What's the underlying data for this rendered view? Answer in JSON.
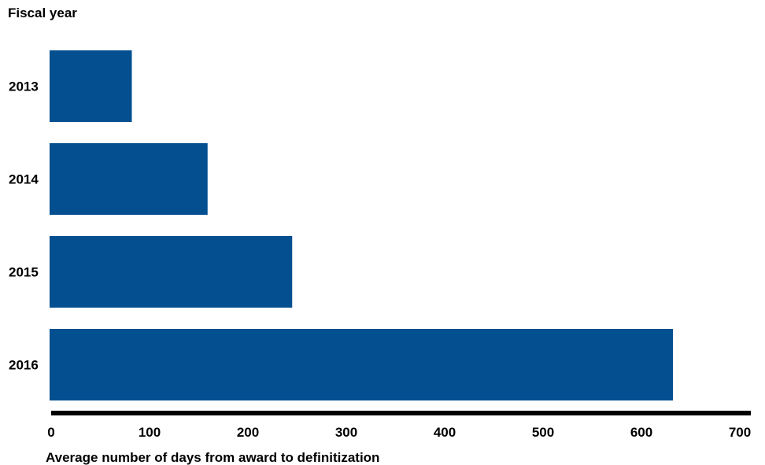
{
  "chart_data": {
    "type": "bar",
    "orientation": "horizontal",
    "title": "",
    "ylabel": "Fiscal year",
    "xlabel": "Average number of days from award to definitization",
    "categories": [
      "2013",
      "2014",
      "2015",
      "2016"
    ],
    "values": [
      82,
      159,
      245,
      632
    ],
    "xlim": [
      0,
      700
    ],
    "xticks": [
      "0",
      "100",
      "200",
      "300",
      "400",
      "500",
      "600",
      "700"
    ],
    "grid": false,
    "bar_color": "#034f90",
    "axis_color": "#000000"
  }
}
